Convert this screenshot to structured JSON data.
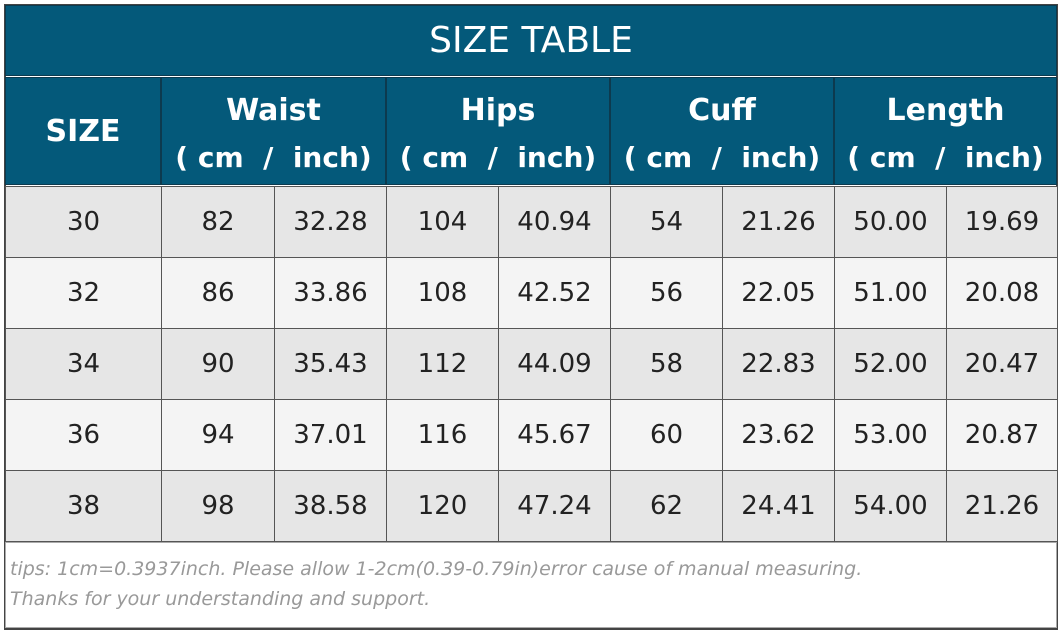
{
  "title": "SIZE TABLE",
  "header": {
    "size": "SIZE",
    "groups": [
      {
        "name": "Waist",
        "units": "( cm  /  inch)"
      },
      {
        "name": "Hips",
        "units": "( cm  /  inch)"
      },
      {
        "name": "Cuff",
        "units": "( cm  /  inch)"
      },
      {
        "name": "Length",
        "units": "( cm  /  inch)"
      }
    ]
  },
  "rows": [
    [
      "30",
      "82",
      "32.28",
      "104",
      "40.94",
      "54",
      "21.26",
      "50.00",
      "19.69"
    ],
    [
      "32",
      "86",
      "33.86",
      "108",
      "42.52",
      "56",
      "22.05",
      "51.00",
      "20.08"
    ],
    [
      "34",
      "90",
      "35.43",
      "112",
      "44.09",
      "58",
      "22.83",
      "52.00",
      "20.47"
    ],
    [
      "36",
      "94",
      "37.01",
      "116",
      "45.67",
      "60",
      "23.62",
      "53.00",
      "20.87"
    ],
    [
      "38",
      "98",
      "38.58",
      "120",
      "47.24",
      "62",
      "24.41",
      "54.00",
      "21.26"
    ]
  ],
  "tips": [
    "tips: 1cm=0.3937inch. Please allow 1-2cm(0.39-0.79in)error cause of manual measuring.",
    "Thanks for your understanding and support."
  ]
}
